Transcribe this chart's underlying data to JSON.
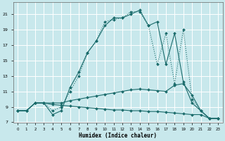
{
  "xlabel": "Humidex (Indice chaleur)",
  "bg_color": "#c8e8ec",
  "grid_color": "#ffffff",
  "line_color": "#1a6b6b",
  "xlim": [
    -0.5,
    23.5
  ],
  "ylim": [
    7,
    22.5
  ],
  "xticks": [
    0,
    1,
    2,
    3,
    4,
    5,
    6,
    7,
    8,
    9,
    10,
    11,
    12,
    13,
    14,
    15,
    16,
    17,
    18,
    19,
    20,
    21,
    22,
    23
  ],
  "yticks": [
    7,
    9,
    11,
    13,
    15,
    17,
    19,
    21
  ],
  "series": [
    {
      "x": [
        0,
        1,
        2,
        3,
        4,
        5,
        6,
        7,
        8,
        9,
        10,
        11,
        12,
        13,
        14,
        15,
        16,
        17,
        18,
        19,
        20,
        21,
        22,
        23
      ],
      "y": [
        8.5,
        8.5,
        9.5,
        9.5,
        8.0,
        8.5,
        11.5,
        13.5,
        16.0,
        17.5,
        19.5,
        20.5,
        20.5,
        21.0,
        21.5,
        19.5,
        20.0,
        14.5,
        18.5,
        12.2,
        9.5,
        8.5,
        7.5,
        7.5
      ],
      "linestyle": "-"
    },
    {
      "x": [
        0,
        1,
        2,
        3,
        4,
        5,
        6,
        7,
        8,
        9,
        10,
        11,
        12,
        13,
        14,
        15,
        16,
        17,
        18,
        19,
        20,
        21,
        22,
        23
      ],
      "y": [
        8.5,
        8.5,
        9.5,
        9.5,
        8.5,
        9.0,
        11.0,
        13.0,
        16.0,
        17.5,
        20.0,
        20.3,
        20.5,
        21.3,
        21.3,
        19.5,
        14.5,
        18.5,
        12.0,
        19.0,
        10.0,
        8.5,
        7.5,
        7.5
      ],
      "linestyle": ":"
    },
    {
      "x": [
        0,
        1,
        2,
        3,
        4,
        5,
        6,
        7,
        8,
        9,
        10,
        11,
        12,
        13,
        14,
        15,
        16,
        17,
        18,
        19,
        20,
        21,
        22,
        23
      ],
      "y": [
        8.5,
        8.5,
        9.5,
        9.5,
        9.5,
        9.5,
        9.8,
        10.0,
        10.2,
        10.4,
        10.6,
        10.8,
        11.0,
        11.2,
        11.3,
        11.2,
        11.1,
        11.0,
        11.8,
        12.0,
        10.5,
        8.5,
        7.5,
        7.5
      ],
      "linestyle": "-"
    },
    {
      "x": [
        0,
        1,
        2,
        3,
        4,
        5,
        6,
        7,
        8,
        9,
        10,
        11,
        12,
        13,
        14,
        15,
        16,
        17,
        18,
        19,
        20,
        21,
        22,
        23
      ],
      "y": [
        8.5,
        8.5,
        9.5,
        9.5,
        9.3,
        9.2,
        9.1,
        9.0,
        8.9,
        8.8,
        8.7,
        8.6,
        8.6,
        8.5,
        8.5,
        8.4,
        8.4,
        8.3,
        8.2,
        8.1,
        8.0,
        8.0,
        7.5,
        7.5
      ],
      "linestyle": "-"
    }
  ]
}
